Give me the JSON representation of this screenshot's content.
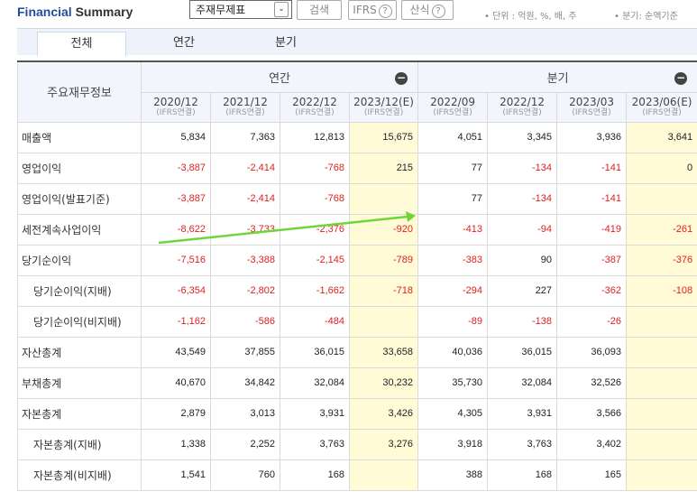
{
  "header": {
    "title_part1": "Financial",
    "title_part2": " Summary",
    "select_value": "주재무제표",
    "search_label": "검색",
    "ifrs_label": "IFRS",
    "formula_label": "산식",
    "help_glyph": "?",
    "unit_text": "• 단위 : 억원, %, 배, 주",
    "quarter_basis_text": "• 분기: 순액기준"
  },
  "tabs": [
    {
      "label": "전체",
      "active": true
    },
    {
      "label": "연간",
      "active": false
    },
    {
      "label": "분기",
      "active": false
    }
  ],
  "table": {
    "row_header": "주요재무정보",
    "annual_group": "연간",
    "quarter_group": "분기",
    "collapse_glyph": "−",
    "columns": [
      {
        "period": "2020/12",
        "basis": "(IFRS연결)",
        "estimate": false
      },
      {
        "period": "2021/12",
        "basis": "(IFRS연결)",
        "estimate": false
      },
      {
        "period": "2022/12",
        "basis": "(IFRS연결)",
        "estimate": false
      },
      {
        "period": "2023/12(E)",
        "basis": "(IFRS연결)",
        "estimate": true
      },
      {
        "period": "2022/09",
        "basis": "(IFRS연결)",
        "estimate": false
      },
      {
        "period": "2022/12",
        "basis": "(IFRS연결)",
        "estimate": false
      },
      {
        "period": "2023/03",
        "basis": "(IFRS연결)",
        "estimate": false
      },
      {
        "period": "2023/06(E)",
        "basis": "(IFRS연결)",
        "estimate": true
      }
    ],
    "rows": [
      {
        "label": "매출액",
        "indent": false,
        "values": [
          "5,834",
          "7,363",
          "12,813",
          "15,675",
          "4,051",
          "3,345",
          "3,936",
          "3,641"
        ]
      },
      {
        "label": "영업이익",
        "indent": false,
        "values": [
          "-3,887",
          "-2,414",
          "-768",
          "215",
          "77",
          "-134",
          "-141",
          "0"
        ]
      },
      {
        "label": "영업이익(발표기준)",
        "indent": false,
        "values": [
          "-3,887",
          "-2,414",
          "-768",
          "",
          "77",
          "-134",
          "-141",
          ""
        ]
      },
      {
        "label": "세전계속사업이익",
        "indent": false,
        "values": [
          "-8,622",
          "-3,733",
          "-2,376",
          "-920",
          "-413",
          "-94",
          "-419",
          "-261"
        ]
      },
      {
        "label": "당기순이익",
        "indent": false,
        "values": [
          "-7,516",
          "-3,388",
          "-2,145",
          "-789",
          "-383",
          "90",
          "-387",
          "-376"
        ]
      },
      {
        "label": "당기순이익(지배)",
        "indent": true,
        "values": [
          "-6,354",
          "-2,802",
          "-1,662",
          "-718",
          "-294",
          "227",
          "-362",
          "-108"
        ]
      },
      {
        "label": "당기순이익(비지배)",
        "indent": true,
        "values": [
          "-1,162",
          "-586",
          "-484",
          "",
          "-89",
          "-138",
          "-26",
          ""
        ]
      },
      {
        "label": "자산총계",
        "indent": false,
        "values": [
          "43,549",
          "37,855",
          "36,015",
          "33,658",
          "40,036",
          "36,015",
          "36,093",
          ""
        ]
      },
      {
        "label": "부채총계",
        "indent": false,
        "values": [
          "40,670",
          "34,842",
          "32,084",
          "30,232",
          "35,730",
          "32,084",
          "32,526",
          ""
        ]
      },
      {
        "label": "자본총계",
        "indent": false,
        "values": [
          "2,879",
          "3,013",
          "3,931",
          "3,426",
          "4,305",
          "3,931",
          "3,566",
          ""
        ]
      },
      {
        "label": "자본총계(지배)",
        "indent": true,
        "values": [
          "1,338",
          "2,252",
          "3,763",
          "3,276",
          "3,918",
          "3,763",
          "3,402",
          ""
        ]
      },
      {
        "label": "자본총계(비지배)",
        "indent": true,
        "values": [
          "1,541",
          "760",
          "168",
          "",
          "388",
          "168",
          "165",
          ""
        ]
      }
    ]
  },
  "annotation": {
    "arrow_color": "#6fd63a"
  }
}
